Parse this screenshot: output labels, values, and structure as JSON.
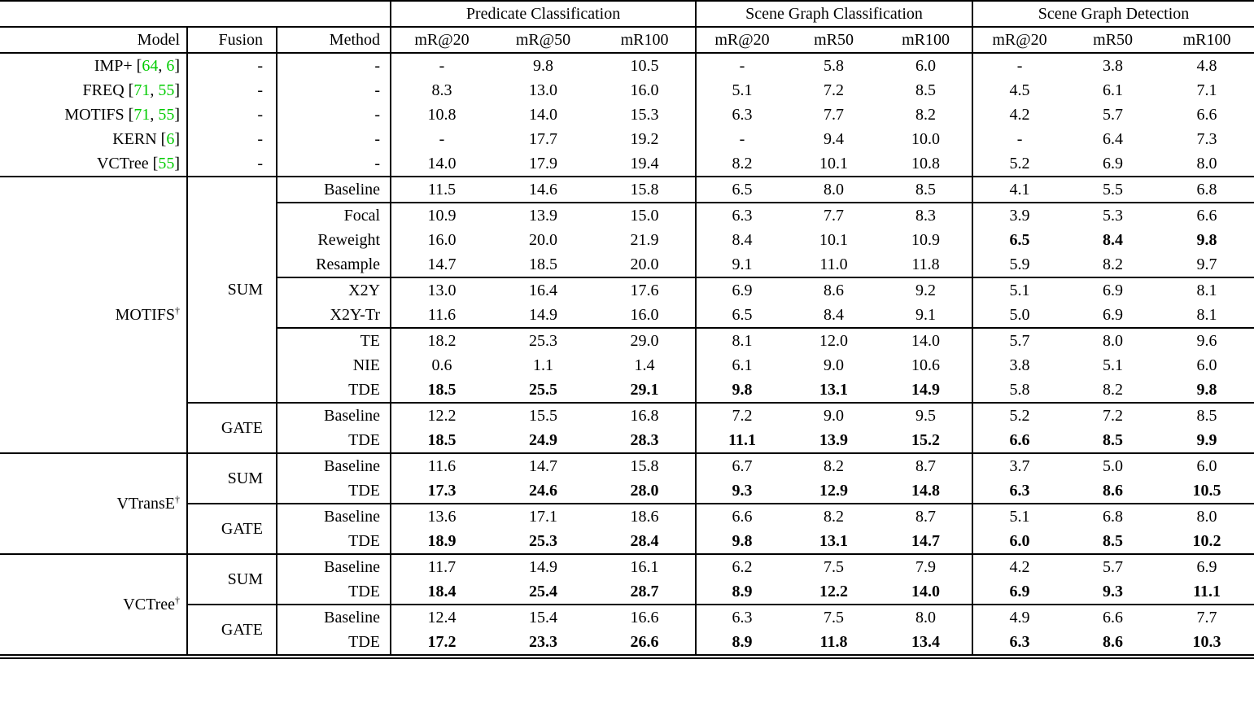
{
  "table": {
    "citation_color": "#00CC00",
    "group_headers": [
      "Predicate Classification",
      "Scene Graph Classification",
      "Scene Graph Detection"
    ],
    "column_headers": [
      "Model",
      "Fusion",
      "Method",
      "mR@20",
      "mR@50",
      "mR100",
      "mR@20",
      "mR50",
      "mR100",
      "mR@20",
      "mR50",
      "mR100"
    ],
    "sections": [
      {
        "type": "flat",
        "rows": [
          {
            "model": {
              "name": "IMP+",
              "cites": [
                "64",
                "6"
              ]
            },
            "fusion": "-",
            "method": "-",
            "values": [
              "-",
              "9.8",
              "10.5",
              "-",
              "5.8",
              "6.0",
              "-",
              "3.8",
              "4.8"
            ],
            "bold": []
          },
          {
            "model": {
              "name": "FREQ",
              "cites": [
                "71",
                "55"
              ]
            },
            "fusion": "-",
            "method": "-",
            "values": [
              "8.3",
              "13.0",
              "16.0",
              "5.1",
              "7.2",
              "8.5",
              "4.5",
              "6.1",
              "7.1"
            ],
            "bold": []
          },
          {
            "model": {
              "name": "MOTIFS",
              "cites": [
                "71",
                "55"
              ]
            },
            "fusion": "-",
            "method": "-",
            "values": [
              "10.8",
              "14.0",
              "15.3",
              "6.3",
              "7.7",
              "8.2",
              "4.2",
              "5.7",
              "6.6"
            ],
            "bold": []
          },
          {
            "model": {
              "name": "KERN",
              "cites": [
                "6"
              ]
            },
            "fusion": "-",
            "method": "-",
            "values": [
              "-",
              "17.7",
              "19.2",
              "-",
              "9.4",
              "10.0",
              "-",
              "6.4",
              "7.3"
            ],
            "bold": []
          },
          {
            "model": {
              "name": "VCTree",
              "cites": [
                "55"
              ]
            },
            "fusion": "-",
            "method": "-",
            "values": [
              "14.0",
              "17.9",
              "19.4",
              "8.2",
              "10.1",
              "10.8",
              "5.2",
              "6.9",
              "8.0"
            ],
            "bold": []
          }
        ]
      },
      {
        "type": "grouped",
        "model": {
          "name": "MOTIFS",
          "dagger": true
        },
        "groups": [
          {
            "fusion": "SUM",
            "rows": [
              {
                "method": "Baseline",
                "values": [
                  "11.5",
                  "14.6",
                  "15.8",
                  "6.5",
                  "8.0",
                  "8.5",
                  "4.1",
                  "5.5",
                  "6.8"
                ],
                "bold": [],
                "line_after": true
              },
              {
                "method": "Focal",
                "values": [
                  "10.9",
                  "13.9",
                  "15.0",
                  "6.3",
                  "7.7",
                  "8.3",
                  "3.9",
                  "5.3",
                  "6.6"
                ],
                "bold": []
              },
              {
                "method": "Reweight",
                "values": [
                  "16.0",
                  "20.0",
                  "21.9",
                  "8.4",
                  "10.1",
                  "10.9",
                  "6.5",
                  "8.4",
                  "9.8"
                ],
                "bold": [
                  6,
                  7,
                  8
                ]
              },
              {
                "method": "Resample",
                "values": [
                  "14.7",
                  "18.5",
                  "20.0",
                  "9.1",
                  "11.0",
                  "11.8",
                  "5.9",
                  "8.2",
                  "9.7"
                ],
                "bold": [],
                "line_after": true
              },
              {
                "method": "X2Y",
                "values": [
                  "13.0",
                  "16.4",
                  "17.6",
                  "6.9",
                  "8.6",
                  "9.2",
                  "5.1",
                  "6.9",
                  "8.1"
                ],
                "bold": []
              },
              {
                "method": "X2Y-Tr",
                "values": [
                  "11.6",
                  "14.9",
                  "16.0",
                  "6.5",
                  "8.4",
                  "9.1",
                  "5.0",
                  "6.9",
                  "8.1"
                ],
                "bold": [],
                "line_after": true
              },
              {
                "method": "TE",
                "values": [
                  "18.2",
                  "25.3",
                  "29.0",
                  "8.1",
                  "12.0",
                  "14.0",
                  "5.7",
                  "8.0",
                  "9.6"
                ],
                "bold": []
              },
              {
                "method": "NIE",
                "values": [
                  "0.6",
                  "1.1",
                  "1.4",
                  "6.1",
                  "9.0",
                  "10.6",
                  "3.8",
                  "5.1",
                  "6.0"
                ],
                "bold": []
              },
              {
                "method": "TDE",
                "values": [
                  "18.5",
                  "25.5",
                  "29.1",
                  "9.8",
                  "13.1",
                  "14.9",
                  "5.8",
                  "8.2",
                  "9.8"
                ],
                "bold": [
                  0,
                  1,
                  2,
                  3,
                  4,
                  5,
                  8
                ]
              }
            ]
          },
          {
            "fusion": "GATE",
            "rows": [
              {
                "method": "Baseline",
                "values": [
                  "12.2",
                  "15.5",
                  "16.8",
                  "7.2",
                  "9.0",
                  "9.5",
                  "5.2",
                  "7.2",
                  "8.5"
                ],
                "bold": []
              },
              {
                "method": "TDE",
                "values": [
                  "18.5",
                  "24.9",
                  "28.3",
                  "11.1",
                  "13.9",
                  "15.2",
                  "6.6",
                  "8.5",
                  "9.9"
                ],
                "bold": [
                  0,
                  1,
                  2,
                  3,
                  4,
                  5,
                  6,
                  7,
                  8
                ]
              }
            ]
          }
        ]
      },
      {
        "type": "grouped",
        "model": {
          "name": "VTransE",
          "dagger": true
        },
        "groups": [
          {
            "fusion": "SUM",
            "rows": [
              {
                "method": "Baseline",
                "values": [
                  "11.6",
                  "14.7",
                  "15.8",
                  "6.7",
                  "8.2",
                  "8.7",
                  "3.7",
                  "5.0",
                  "6.0"
                ],
                "bold": []
              },
              {
                "method": "TDE",
                "values": [
                  "17.3",
                  "24.6",
                  "28.0",
                  "9.3",
                  "12.9",
                  "14.8",
                  "6.3",
                  "8.6",
                  "10.5"
                ],
                "bold": [
                  0,
                  1,
                  2,
                  3,
                  4,
                  5,
                  6,
                  7,
                  8
                ]
              }
            ]
          },
          {
            "fusion": "GATE",
            "rows": [
              {
                "method": "Baseline",
                "values": [
                  "13.6",
                  "17.1",
                  "18.6",
                  "6.6",
                  "8.2",
                  "8.7",
                  "5.1",
                  "6.8",
                  "8.0"
                ],
                "bold": []
              },
              {
                "method": "TDE",
                "values": [
                  "18.9",
                  "25.3",
                  "28.4",
                  "9.8",
                  "13.1",
                  "14.7",
                  "6.0",
                  "8.5",
                  "10.2"
                ],
                "bold": [
                  0,
                  1,
                  2,
                  3,
                  4,
                  5,
                  6,
                  7,
                  8
                ]
              }
            ]
          }
        ]
      },
      {
        "type": "grouped",
        "model": {
          "name": "VCTree",
          "dagger": true
        },
        "groups": [
          {
            "fusion": "SUM",
            "rows": [
              {
                "method": "Baseline",
                "values": [
                  "11.7",
                  "14.9",
                  "16.1",
                  "6.2",
                  "7.5",
                  "7.9",
                  "4.2",
                  "5.7",
                  "6.9"
                ],
                "bold": []
              },
              {
                "method": "TDE",
                "values": [
                  "18.4",
                  "25.4",
                  "28.7",
                  "8.9",
                  "12.2",
                  "14.0",
                  "6.9",
                  "9.3",
                  "11.1"
                ],
                "bold": [
                  0,
                  1,
                  2,
                  3,
                  4,
                  5,
                  6,
                  7,
                  8
                ]
              }
            ]
          },
          {
            "fusion": "GATE",
            "rows": [
              {
                "method": "Baseline",
                "values": [
                  "12.4",
                  "15.4",
                  "16.6",
                  "6.3",
                  "7.5",
                  "8.0",
                  "4.9",
                  "6.6",
                  "7.7"
                ],
                "bold": []
              },
              {
                "method": "TDE",
                "values": [
                  "17.2",
                  "23.3",
                  "26.6",
                  "8.9",
                  "11.8",
                  "13.4",
                  "6.3",
                  "8.6",
                  "10.3"
                ],
                "bold": [
                  0,
                  1,
                  2,
                  3,
                  4,
                  5,
                  6,
                  7,
                  8
                ]
              }
            ]
          }
        ]
      }
    ]
  }
}
